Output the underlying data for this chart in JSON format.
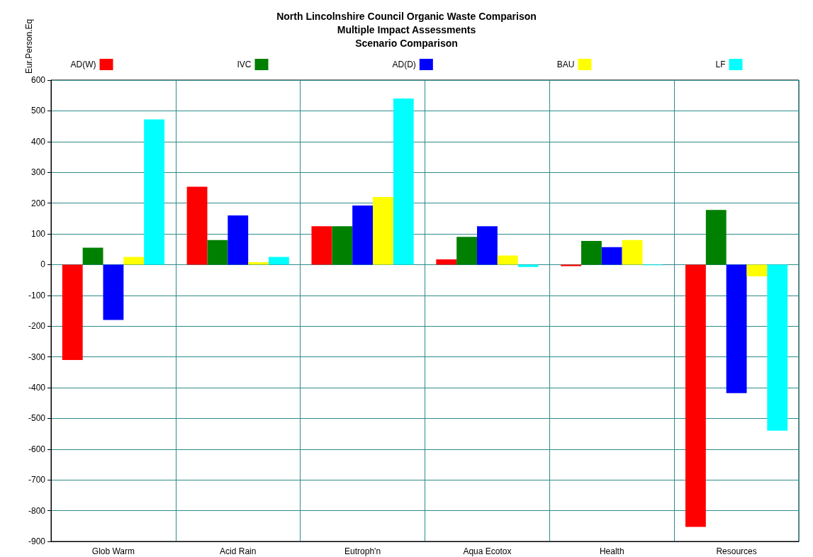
{
  "chart_data": {
    "type": "bar",
    "title": "North Lincolnshire Council Organic Waste Comparison\nMultiple Impact Assessments\nScenario Comparison",
    "ylabel": "Eur.Person.Eq",
    "categories": [
      "Glob Warm",
      "Acid Rain",
      "Eutroph'n",
      "Aqua Ecotox",
      "Health",
      "Resources"
    ],
    "series": [
      {
        "name": "AD(W)",
        "color": "#ff0000",
        "values": [
          -310,
          253,
          125,
          17,
          -5,
          -853
        ]
      },
      {
        "name": "IVC",
        "color": "#008000",
        "values": [
          55,
          80,
          125,
          90,
          77,
          178
        ]
      },
      {
        "name": "AD(D)",
        "color": "#0000ff",
        "values": [
          -180,
          160,
          192,
          125,
          57,
          -418
        ]
      },
      {
        "name": "BAU",
        "color": "#ffff00",
        "values": [
          25,
          8,
          220,
          30,
          80,
          -38
        ]
      },
      {
        "name": "LF",
        "color": "#00ffff",
        "values": [
          472,
          25,
          540,
          -8,
          -2,
          -540
        ]
      }
    ],
    "ylim": [
      -900,
      600
    ],
    "yticks": [
      -900,
      -800,
      -700,
      -600,
      -500,
      -400,
      -300,
      -200,
      -100,
      0,
      100,
      200,
      300,
      400,
      500,
      600
    ],
    "grid": true,
    "legend": "top"
  }
}
